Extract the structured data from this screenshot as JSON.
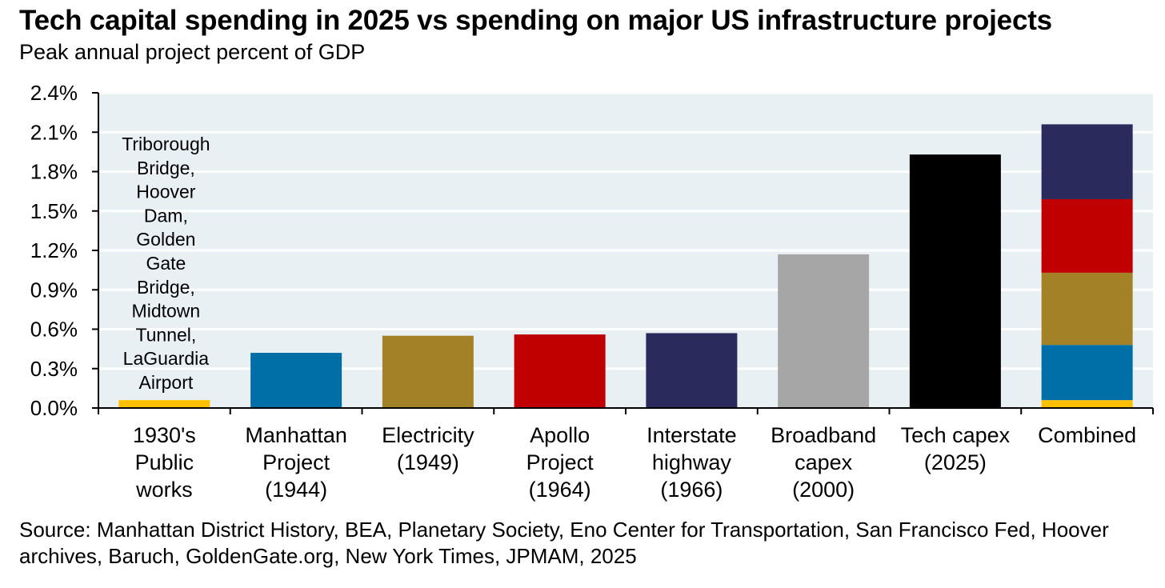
{
  "chart_data": {
    "type": "bar",
    "stacked_last": true,
    "title": "Tech capital spending in 2025 vs spending on major US infrastructure projects",
    "subtitle": "Peak annual project percent of GDP",
    "ylim": [
      0,
      2.4
    ],
    "yticks": [
      "0.0%",
      "0.3%",
      "0.6%",
      "0.9%",
      "1.2%",
      "1.5%",
      "1.8%",
      "2.1%",
      "2.4%"
    ],
    "grid": true,
    "categories": [
      [
        "1930's",
        "Public",
        "works"
      ],
      [
        "Manhattan",
        "Project",
        "(1944)"
      ],
      [
        "Electricity",
        "(1949)"
      ],
      [
        "Apollo",
        "Project",
        "(1964)"
      ],
      [
        "Interstate",
        "highway",
        "(1966)"
      ],
      [
        "Broadband",
        "capex",
        "(2000)"
      ],
      [
        "Tech capex",
        "(2025)"
      ],
      [
        "Combined"
      ]
    ],
    "bars": [
      {
        "value": 0.06,
        "color": "#FFC000"
      },
      {
        "value": 0.42,
        "color": "#006FA8"
      },
      {
        "value": 0.55,
        "color": "#A38227"
      },
      {
        "value": 0.56,
        "color": "#C00000"
      },
      {
        "value": 0.57,
        "color": "#2B2A5C"
      },
      {
        "value": 1.17,
        "color": "#A6A6A6"
      },
      {
        "value": 1.93,
        "color": "#000000"
      },
      {
        "stack": [
          {
            "value": 0.06,
            "color": "#FFC000"
          },
          {
            "value": 0.42,
            "color": "#006FA8"
          },
          {
            "value": 0.55,
            "color": "#A38227"
          },
          {
            "value": 0.56,
            "color": "#C00000"
          },
          {
            "value": 0.57,
            "color": "#2B2A5C"
          }
        ]
      }
    ],
    "annotation": [
      "Triborough",
      "Bridge,",
      "Hoover",
      "Dam,",
      "Golden",
      "Gate",
      "Bridge,",
      "Midtown",
      "Tunnel,",
      "LaGuardia",
      "Airport"
    ],
    "plot_background": "#E8F0F4"
  },
  "source": "Source: Manhattan District History, BEA, Planetary Society, Eno Center for Transportation, San Francisco Fed, Hoover archives, Baruch, GoldenGate.org, New York Times, JPMAM, 2025"
}
